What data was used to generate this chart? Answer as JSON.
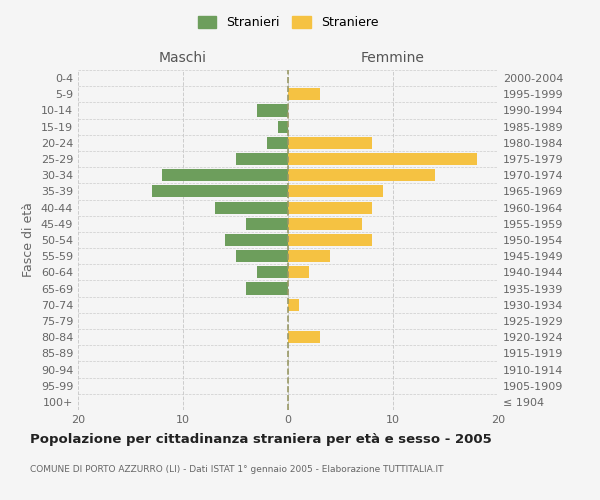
{
  "age_groups": [
    "100+",
    "95-99",
    "90-94",
    "85-89",
    "80-84",
    "75-79",
    "70-74",
    "65-69",
    "60-64",
    "55-59",
    "50-54",
    "45-49",
    "40-44",
    "35-39",
    "30-34",
    "25-29",
    "20-24",
    "15-19",
    "10-14",
    "5-9",
    "0-4"
  ],
  "birth_years": [
    "≤ 1904",
    "1905-1909",
    "1910-1914",
    "1915-1919",
    "1920-1924",
    "1925-1929",
    "1930-1934",
    "1935-1939",
    "1940-1944",
    "1945-1949",
    "1950-1954",
    "1955-1959",
    "1960-1964",
    "1965-1969",
    "1970-1974",
    "1975-1979",
    "1980-1984",
    "1985-1989",
    "1990-1994",
    "1995-1999",
    "2000-2004"
  ],
  "maschi": [
    0,
    0,
    0,
    0,
    0,
    0,
    0,
    4,
    3,
    5,
    6,
    4,
    7,
    13,
    12,
    5,
    2,
    1,
    3,
    0,
    0
  ],
  "femmine": [
    0,
    0,
    0,
    0,
    3,
    0,
    1,
    0,
    2,
    4,
    8,
    7,
    8,
    9,
    14,
    18,
    8,
    0,
    0,
    3,
    0
  ],
  "maschi_color": "#6d9e5c",
  "femmine_color": "#f5c242",
  "bg_color": "#f5f5f5",
  "grid_color": "#cccccc",
  "title": "Popolazione per cittadinanza straniera per età e sesso - 2005",
  "subtitle": "COMUNE DI PORTO AZZURRO (LI) - Dati ISTAT 1° gennaio 2005 - Elaborazione TUTTITALIA.IT",
  "left_label": "Maschi",
  "right_label": "Femmine",
  "ylabel_left": "Fasce di età",
  "legend_maschi": "Stranieri",
  "legend_femmine": "Straniere",
  "xlim": 20
}
